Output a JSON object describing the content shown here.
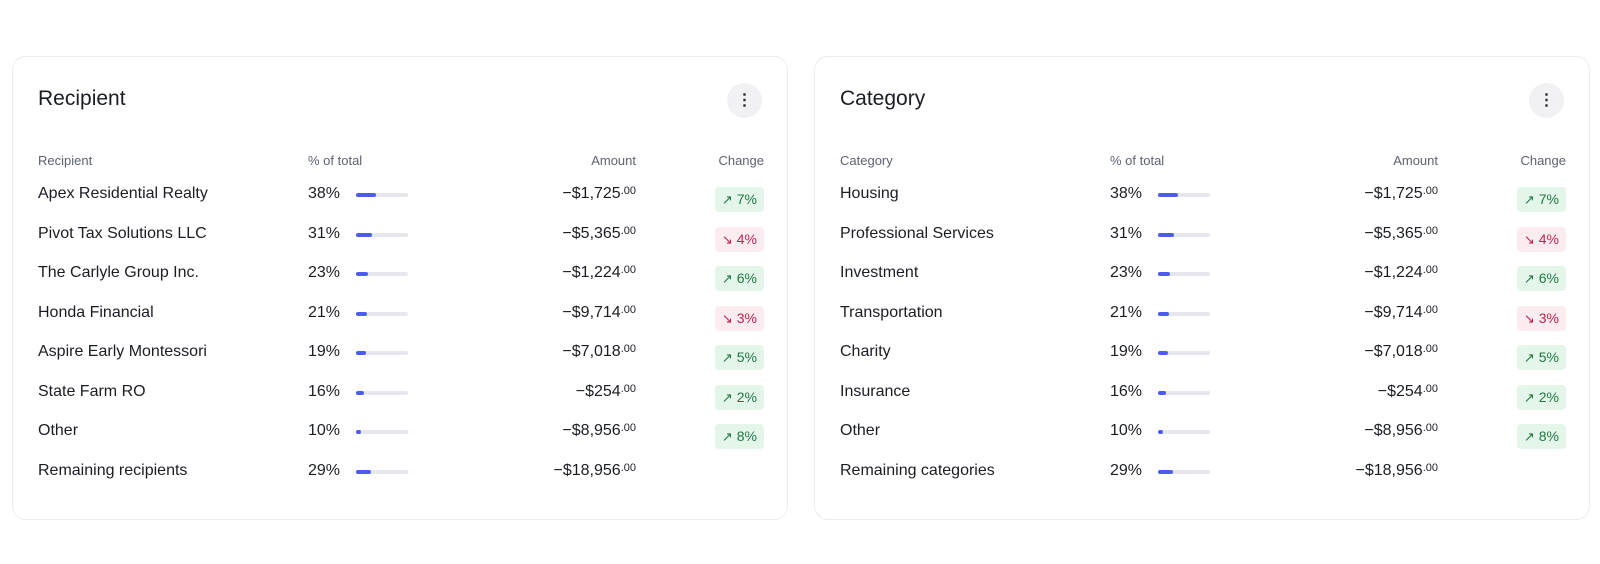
{
  "colors": {
    "bar": "#4c5cf0",
    "track": "#e6e7ec",
    "up": "#1f7a43",
    "down": "#c2224e"
  },
  "panels": [
    {
      "title": "Recipient",
      "menu_icon": "more-vertical-icon",
      "columns": {
        "name": "Recipient",
        "pct": "% of total",
        "amount": "Amount",
        "change": "Change"
      },
      "rows": [
        {
          "name": "Apex Residential Realty",
          "pct": "38%",
          "pct_value": 38,
          "amount": "−$1,725",
          "cents": ".00",
          "change": "7%",
          "direction": "up"
        },
        {
          "name": "Pivot Tax Solutions LLC",
          "pct": "31%",
          "pct_value": 31,
          "amount": "−$5,365",
          "cents": ".00",
          "change": "4%",
          "direction": "down"
        },
        {
          "name": "The Carlyle Group Inc.",
          "pct": "23%",
          "pct_value": 23,
          "amount": "−$1,224",
          "cents": ".00",
          "change": "6%",
          "direction": "up"
        },
        {
          "name": "Honda Financial",
          "pct": "21%",
          "pct_value": 21,
          "amount": "−$9,714",
          "cents": ".00",
          "change": "3%",
          "direction": "down"
        },
        {
          "name": "Aspire Early Montessori",
          "pct": "19%",
          "pct_value": 19,
          "amount": "−$7,018",
          "cents": ".00",
          "change": "5%",
          "direction": "up"
        },
        {
          "name": "State Farm RO",
          "pct": "16%",
          "pct_value": 16,
          "amount": "−$254",
          "cents": ".00",
          "change": "2%",
          "direction": "up"
        },
        {
          "name": "Other",
          "pct": "10%",
          "pct_value": 10,
          "amount": "−$8,956",
          "cents": ".00",
          "change": "8%",
          "direction": "up"
        },
        {
          "name": "Remaining recipients",
          "pct": "29%",
          "pct_value": 29,
          "amount": "−$18,956",
          "cents": ".00",
          "change": "",
          "direction": ""
        }
      ]
    },
    {
      "title": "Category",
      "menu_icon": "more-vertical-icon",
      "columns": {
        "name": "Category",
        "pct": "% of total",
        "amount": "Amount",
        "change": "Change"
      },
      "rows": [
        {
          "name": "Housing",
          "pct": "38%",
          "pct_value": 38,
          "amount": "−$1,725",
          "cents": ".00",
          "change": "7%",
          "direction": "up"
        },
        {
          "name": "Professional Services",
          "pct": "31%",
          "pct_value": 31,
          "amount": "−$5,365",
          "cents": ".00",
          "change": "4%",
          "direction": "down"
        },
        {
          "name": "Investment",
          "pct": "23%",
          "pct_value": 23,
          "amount": "−$1,224",
          "cents": ".00",
          "change": "6%",
          "direction": "up"
        },
        {
          "name": "Transportation",
          "pct": "21%",
          "pct_value": 21,
          "amount": "−$9,714",
          "cents": ".00",
          "change": "3%",
          "direction": "down"
        },
        {
          "name": "Charity",
          "pct": "19%",
          "pct_value": 19,
          "amount": "−$7,018",
          "cents": ".00",
          "change": "5%",
          "direction": "up"
        },
        {
          "name": "Insurance",
          "pct": "16%",
          "pct_value": 16,
          "amount": "−$254",
          "cents": ".00",
          "change": "2%",
          "direction": "up"
        },
        {
          "name": "Other",
          "pct": "10%",
          "pct_value": 10,
          "amount": "−$8,956",
          "cents": ".00",
          "change": "8%",
          "direction": "up"
        },
        {
          "name": "Remaining categories",
          "pct": "29%",
          "pct_value": 29,
          "amount": "−$18,956",
          "cents": ".00",
          "change": "",
          "direction": ""
        }
      ]
    }
  ]
}
